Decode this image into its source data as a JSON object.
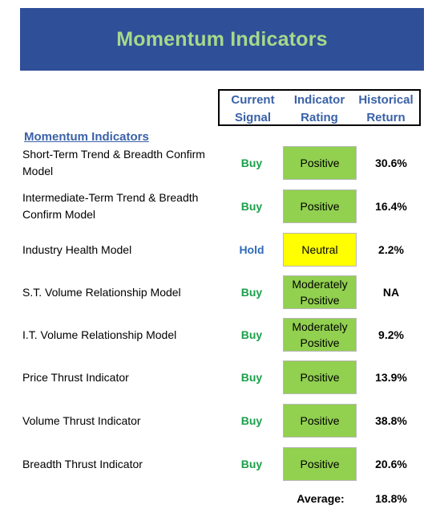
{
  "title": "Momentum Indicators",
  "columns": {
    "signal": [
      "Current",
      "Signal"
    ],
    "rating": [
      "Indicator",
      "Rating"
    ],
    "return": [
      "Historical",
      "Return"
    ]
  },
  "section_label": "Momentum Indicators",
  "colors": {
    "banner_bg": "#2f4f99",
    "banner_text": "#a6d98a",
    "header_text": "#3a62a8",
    "buy": "#1aa04a",
    "hold": "#2f6bb8",
    "positive_bg": "#92d050",
    "neutral_bg": "#ffff00"
  },
  "rows": [
    {
      "label": "Short-Term Trend & Breadth Confirm Model",
      "signal": "Buy",
      "signal_type": "buy",
      "rating": "Positive",
      "rating_type": "positive",
      "return": "30.6%"
    },
    {
      "label": "Intermediate-Term Trend & Breadth Confirm Model",
      "signal": "Buy",
      "signal_type": "buy",
      "rating": "Positive",
      "rating_type": "positive",
      "return": "16.4%"
    },
    {
      "label": "Industry Health Model",
      "signal": "Hold",
      "signal_type": "hold",
      "rating": "Neutral",
      "rating_type": "neutral",
      "return": "2.2%"
    },
    {
      "label": "S.T. Volume Relationship Model",
      "signal": "Buy",
      "signal_type": "buy",
      "rating": "Moderately Positive",
      "rating_type": "positive",
      "return": "NA"
    },
    {
      "label": "I.T. Volume Relationship Model",
      "signal": "Buy",
      "signal_type": "buy",
      "rating": "Moderately Positive",
      "rating_type": "positive",
      "return": "9.2%"
    },
    {
      "label": "Price Thrust Indicator",
      "signal": "Buy",
      "signal_type": "buy",
      "rating": "Positive",
      "rating_type": "positive",
      "return": "13.9%"
    },
    {
      "label": "Volume Thrust Indicator",
      "signal": "Buy",
      "signal_type": "buy",
      "rating": "Positive",
      "rating_type": "positive",
      "return": "38.8%"
    },
    {
      "label": "Breadth Thrust Indicator",
      "signal": "Buy",
      "signal_type": "buy",
      "rating": "Positive",
      "rating_type": "positive",
      "return": "20.6%"
    }
  ],
  "average": {
    "label": "Average:",
    "value": "18.8%"
  }
}
